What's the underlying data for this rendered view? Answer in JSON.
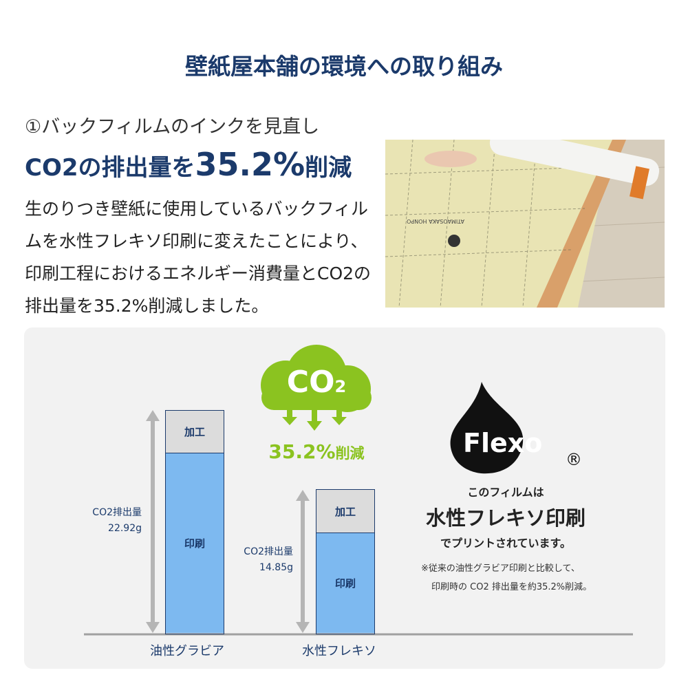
{
  "title": "壁紙屋本舗の環境への取り組み",
  "subtitle": "①バックフィルムのインクを見直し",
  "headline": {
    "prefix": "CO2の排出量を",
    "number": "35.2%",
    "suffix": "削減"
  },
  "body": "生のりつき壁紙に使用しているバックフィルムを水性フレキソ印刷に変えたことにより、印刷工程におけるエネルギー消費量とCO2の排出量を35.2%削減しました。",
  "photo": {
    "print_text": "ATIMAOSAKA HONPO"
  },
  "cloud": {
    "label": "CO",
    "sub": "2",
    "reduction": "35.2%",
    "reduction_suffix": "削減",
    "color": "#8bc320"
  },
  "chart_data": {
    "type": "bar",
    "stacked": true,
    "categories": [
      "油性グラビア",
      "水性フレキソ"
    ],
    "segment_labels": {
      "top": "加工",
      "bottom": "印刷"
    },
    "totals": [
      22.92,
      14.85
    ],
    "total_labels": [
      {
        "label": "CO2排出量",
        "value": "22.92g"
      },
      {
        "label": "CO2排出量",
        "value": "14.85g"
      }
    ],
    "unit": "g",
    "colors": {
      "top": "#dcdcdc",
      "bottom": "#7db9f0"
    }
  },
  "flexo": {
    "logo": "Flexo",
    "registered": "®",
    "line1": "このフィルムは",
    "line2": "水性フレキソ印刷",
    "line3": "でプリントされています。",
    "note1": "※従来の油性グラビア印刷と比較して、",
    "note2": "印刷時の CO2 排出量を約35.2%削減。"
  }
}
